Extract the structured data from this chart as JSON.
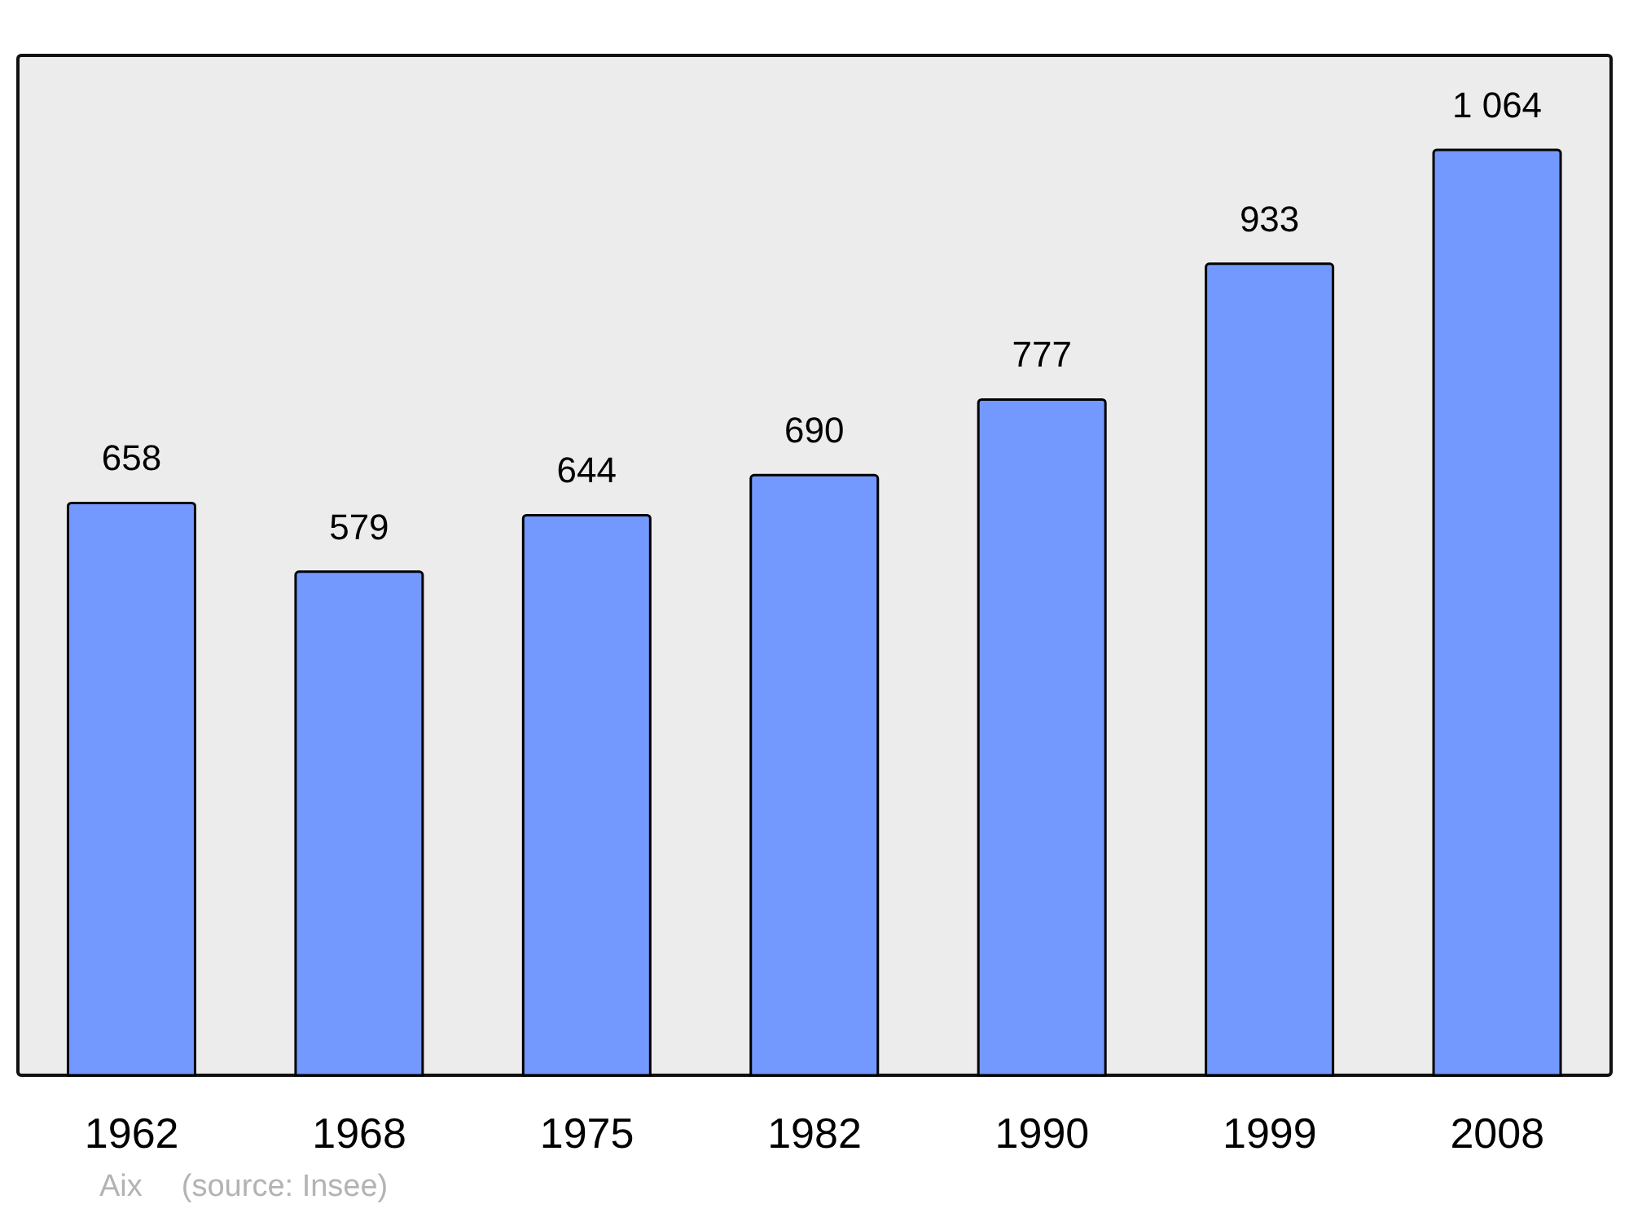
{
  "chart_data": {
    "type": "bar",
    "categories": [
      "1962",
      "1968",
      "1975",
      "1982",
      "1990",
      "1999",
      "2008"
    ],
    "values": [
      658,
      579,
      644,
      690,
      777,
      933,
      1064
    ],
    "value_labels": [
      "658",
      "579",
      "644",
      "690",
      "777",
      "933",
      "1 064"
    ],
    "color": "#7399ff",
    "grid": false,
    "annotations": [
      "Aix",
      "(source: Insee)"
    ]
  }
}
